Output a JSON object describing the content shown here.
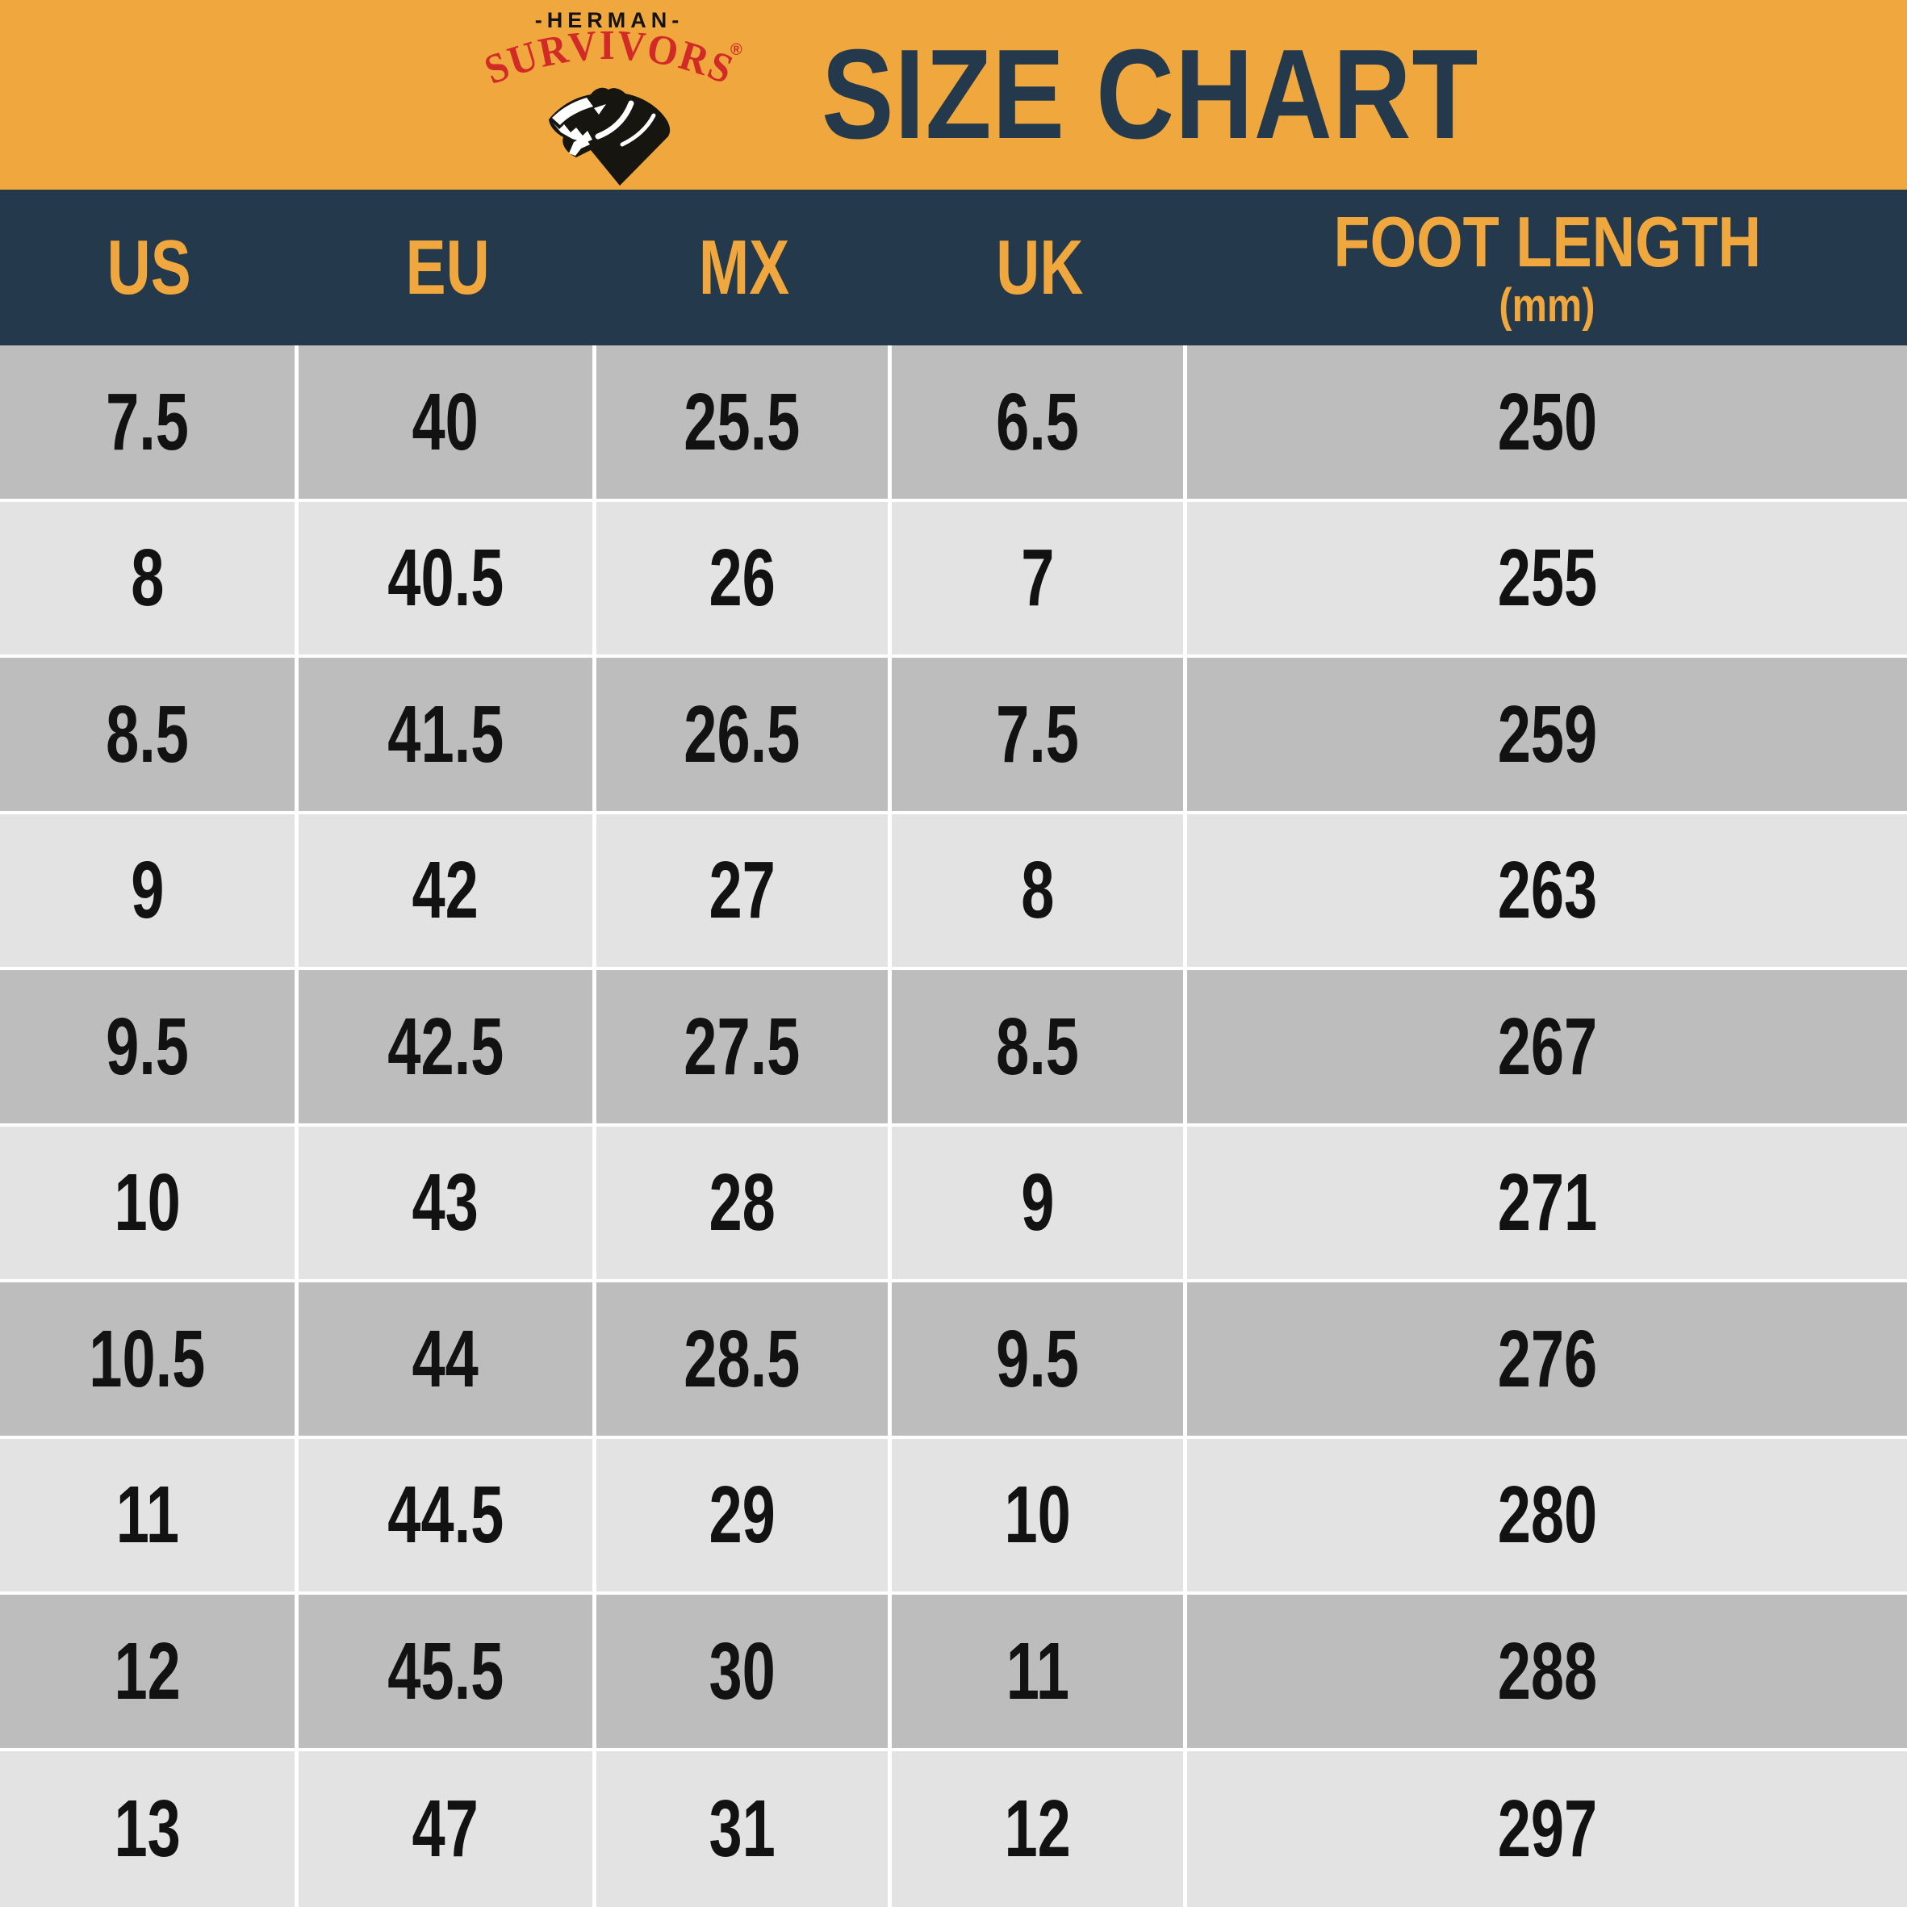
{
  "brand": {
    "name_top": "-HERMAN-",
    "name_arc": "SURVIVORS",
    "registered_mark": "®",
    "logo_icon": "bear-head-icon"
  },
  "title": "SIZE CHART",
  "table": {
    "columns": [
      {
        "key": "us",
        "label": "US"
      },
      {
        "key": "eu",
        "label": "EU"
      },
      {
        "key": "mx",
        "label": "MX"
      },
      {
        "key": "uk",
        "label": "UK"
      },
      {
        "key": "foot_length",
        "label": "FOOT LENGTH",
        "sublabel": "(mm)"
      }
    ],
    "rows": [
      [
        "7.5",
        "40",
        "25.5",
        "6.5",
        "250"
      ],
      [
        "8",
        "40.5",
        "26",
        "7",
        "255"
      ],
      [
        "8.5",
        "41.5",
        "26.5",
        "7.5",
        "259"
      ],
      [
        "9",
        "42",
        "27",
        "8",
        "263"
      ],
      [
        "9.5",
        "42.5",
        "27.5",
        "8.5",
        "267"
      ],
      [
        "10",
        "43",
        "28",
        "9",
        "271"
      ],
      [
        "10.5",
        "44",
        "28.5",
        "9.5",
        "276"
      ],
      [
        "11",
        "44.5",
        "29",
        "10",
        "280"
      ],
      [
        "12",
        "45.5",
        "30",
        "11",
        "288"
      ],
      [
        "13",
        "47",
        "31",
        "12",
        "297"
      ]
    ]
  },
  "chart_data": {
    "type": "table",
    "title": "SIZE CHART",
    "columns": [
      "US",
      "EU",
      "MX",
      "UK",
      "FOOT LENGTH (mm)"
    ],
    "rows": [
      [
        7.5,
        40,
        25.5,
        6.5,
        250
      ],
      [
        8,
        40.5,
        26,
        7,
        255
      ],
      [
        8.5,
        41.5,
        26.5,
        7.5,
        259
      ],
      [
        9,
        42,
        27,
        8,
        263
      ],
      [
        9.5,
        42.5,
        27.5,
        8.5,
        267
      ],
      [
        10,
        43,
        28,
        9,
        271
      ],
      [
        10.5,
        44,
        28.5,
        9.5,
        276
      ],
      [
        11,
        44.5,
        29,
        10,
        280
      ],
      [
        12,
        45.5,
        30,
        11,
        288
      ],
      [
        13,
        47,
        31,
        12,
        297
      ]
    ]
  },
  "colors": {
    "banner_orange": "#F0A83E",
    "header_navy": "#24394B",
    "brand_red": "#D22B27",
    "row_dark": "#BDBDBD",
    "row_light": "#E3E3E3",
    "cell_text": "#121212",
    "separator_white": "#FFFFFF"
  }
}
